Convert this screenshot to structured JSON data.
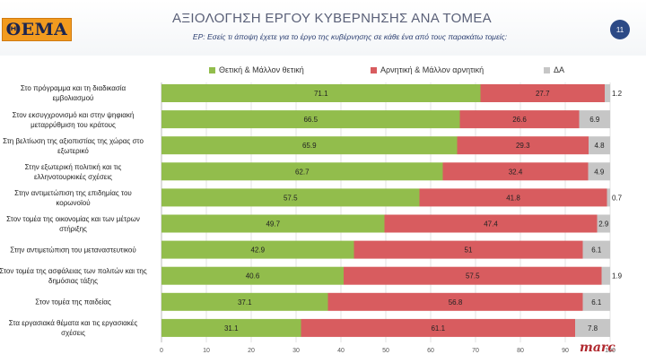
{
  "header": {
    "logo_text": "ΘΕΜΑ",
    "title": "ΑΞΙΟΛΟΓΗΣΗ ΕΡΓΟΥ ΚΥΒΕΡΝΗΣΗΣ ΑΝΑ ΤΟΜΕΑ",
    "question": "ΕΡ: Εσείς τι άποψη έχετε για το έργο της κυβέρνησης σε κάθε ένα από τους παρακάτω τομείς:",
    "page_number": "11",
    "brand": "marc"
  },
  "colors": {
    "positive": "#92bd4c",
    "negative": "#d85c5f",
    "dk": "#c6c6c6",
    "logo_bg": "#f29b1f",
    "badge_bg": "#2c4a86"
  },
  "chart_data": {
    "type": "bar",
    "orientation": "horizontal",
    "stacked": true,
    "categories": [
      "Στο πρόγραμμα και τη διαδικασία εμβολιασμού",
      "Στον εκσυγχρονισμό και στην ψηφιακή μεταρρύθμιση του κράτους",
      "Στη βελτίωση της αξιοπιστίας της χώρας στο εξωτερικό",
      "Στην εξωτερική πολιτική και τις ελληνοτουρκικές σχέσεις",
      "Στην αντιμετώπιση της επιδημίας του κορωνοϊού",
      "Στον τομέα της οικονομίας και των μέτρων στήριξης",
      "Στην αντιμετώπιση του μεταναστευτικού",
      "Στον τομέα της ασφάλειας των πολιτών και της δημόσιας τάξης",
      "Στον τομέα της παιδείας",
      "Στα εργασιακά θέματα και τις εργασιακές σχέσεις"
    ],
    "series": [
      {
        "name": "Θετική & Μάλλον θετική",
        "values": [
          71.1,
          66.5,
          65.9,
          62.7,
          57.5,
          49.7,
          42.9,
          40.6,
          37.1,
          31.1
        ]
      },
      {
        "name": "Αρνητική & Μάλλον αρνητική",
        "values": [
          27.7,
          26.6,
          29.3,
          32.4,
          41.8,
          47.4,
          51,
          57.5,
          56.8,
          61.1
        ]
      },
      {
        "name": "ΔΑ",
        "values": [
          1.2,
          6.9,
          4.8,
          4.9,
          0.7,
          2.9,
          6.1,
          1.9,
          6.1,
          7.8
        ]
      }
    ],
    "xlim": [
      0,
      100
    ],
    "xticks": [
      0,
      10,
      20,
      30,
      40,
      50,
      60,
      70,
      80,
      90,
      100
    ],
    "legend_position": "top",
    "grid": true
  }
}
